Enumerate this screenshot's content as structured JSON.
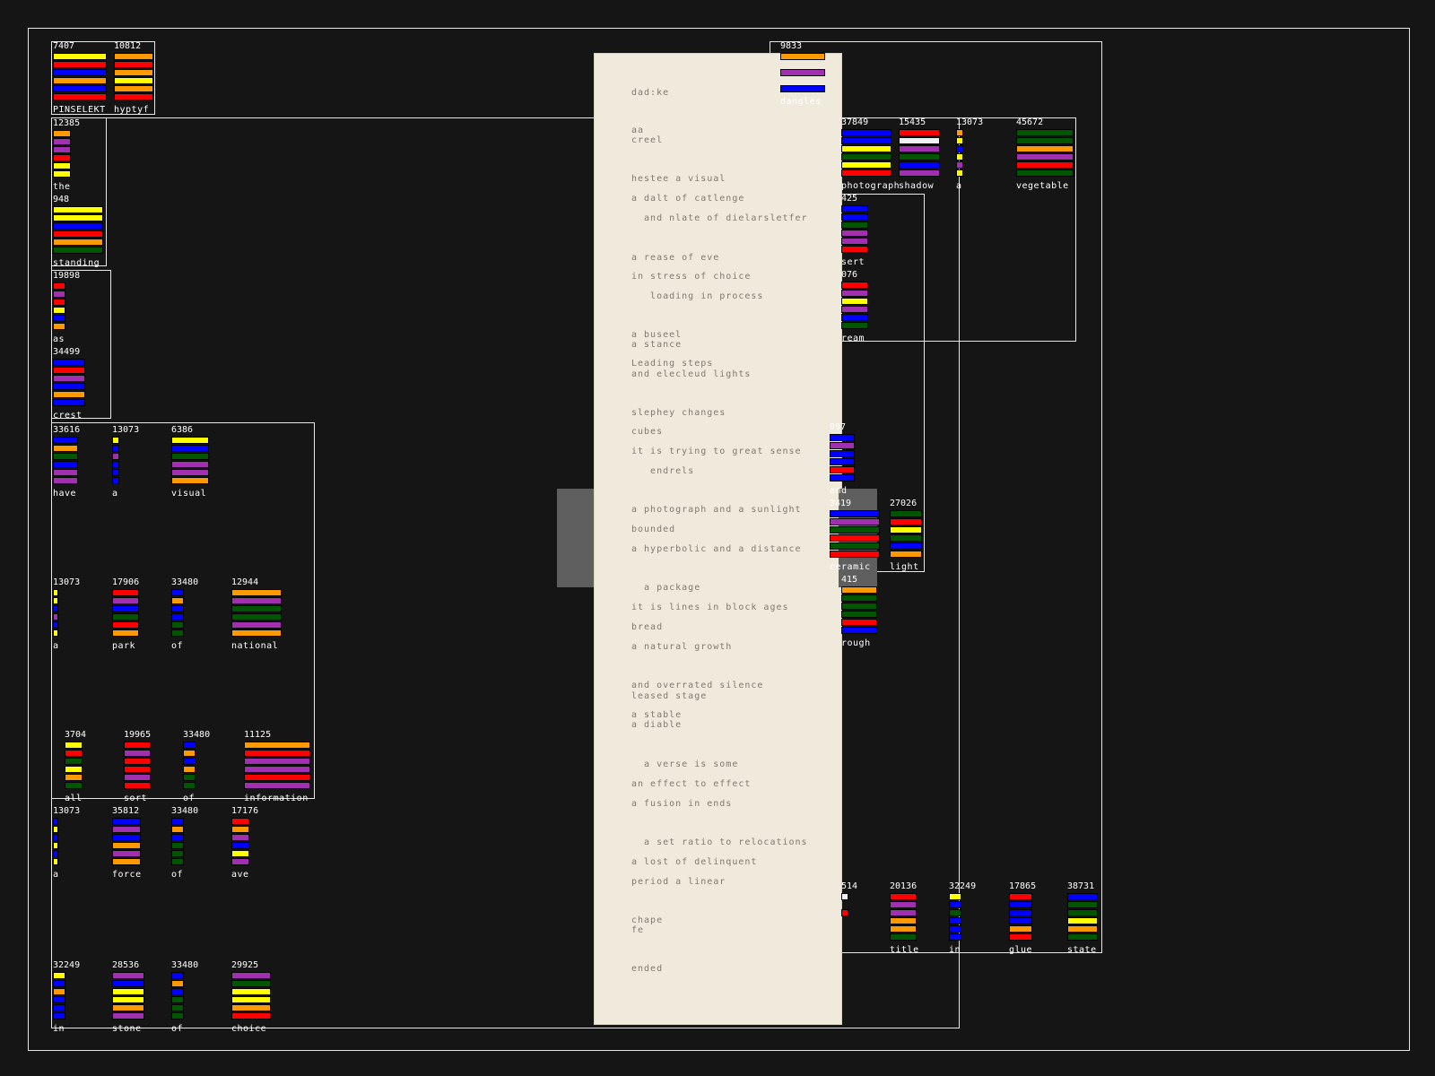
{
  "colors": {
    "background": "#151515",
    "paper": "#efeadc",
    "yellow": "#ffff00",
    "orange": "#ff9900",
    "blue": "#0000ff",
    "red": "#ff0000",
    "purple": "#a030b0",
    "green": "#005500",
    "white": "#f2f2f2"
  },
  "paper_lines": [
    "dad:ke",
    "aa",
    "creel",
    "hestee a visual",
    "a dalt of catlenge",
    "  and nlate of dielarsletfer",
    "a rease of eve",
    "in stress of choice",
    "   loading in process",
    "a buseel",
    "a stance",
    "Leading steps",
    "and elecleud lights",
    "slephey changes",
    "cubes",
    "it is trying to great sense",
    "   endrels",
    "a photograph and a sunlight",
    "bounded",
    "a hyperbolic and a distance",
    "  a package",
    "it is lines in block ages",
    "bread",
    "a natural growth",
    "and overrated silence",
    "leased stage",
    "a stable",
    "a diable",
    "  a verse is some",
    "an effect to effect",
    "a fusion in ends",
    "  a set ratio to relocations",
    "a lost of delinquent",
    "period a linear",
    "chape",
    "fe",
    "ended"
  ],
  "cells": [
    {
      "num": "7407",
      "label": "PINSELEKT"
    },
    {
      "num": "10812",
      "label": "hyptyf"
    },
    {
      "num": "9833",
      "label": "dangles"
    },
    {
      "num": "12385",
      "label": "the"
    },
    {
      "num": "948",
      "label": "standing"
    },
    {
      "num": "19898",
      "label": "as"
    },
    {
      "num": "34499",
      "label": "crest"
    },
    {
      "num": "33616",
      "label": "have"
    },
    {
      "num": "13073",
      "label": "a"
    },
    {
      "num": "6386",
      "label": "visual"
    },
    {
      "num": "13073",
      "label": "a"
    },
    {
      "num": "17906",
      "label": "park"
    },
    {
      "num": "33480",
      "label": "of"
    },
    {
      "num": "12944",
      "label": "national"
    },
    {
      "num": "3704",
      "label": "all"
    },
    {
      "num": "19965",
      "label": "sort"
    },
    {
      "num": "33480",
      "label": "of"
    },
    {
      "num": "11125",
      "label": "information"
    },
    {
      "num": "13073",
      "label": "a"
    },
    {
      "num": "35812",
      "label": "force"
    },
    {
      "num": "33480",
      "label": "of"
    },
    {
      "num": "17176",
      "label": "ave"
    },
    {
      "num": "32249",
      "label": "in"
    },
    {
      "num": "28536",
      "label": "stone"
    },
    {
      "num": "33480",
      "label": "of"
    },
    {
      "num": "29925",
      "label": "choice"
    },
    {
      "num": "37849",
      "label": "photograph"
    },
    {
      "num": "15435",
      "label": "shadow"
    },
    {
      "num": "13073",
      "label": "a"
    },
    {
      "num": "45672",
      "label": "vegetable"
    },
    {
      "num": "425",
      "label": "sert"
    },
    {
      "num": "076",
      "label": "ream"
    },
    {
      "num": "097",
      "label": "and"
    },
    {
      "num": "27026",
      "label": "light"
    },
    {
      "num": "3419",
      "label": "ceramic"
    },
    {
      "num": "415",
      "label": "rough"
    },
    {
      "num": "514",
      "label": ""
    },
    {
      "num": "20136",
      "label": "title"
    },
    {
      "num": "32249",
      "label": "in"
    },
    {
      "num": "17865",
      "label": "glue"
    },
    {
      "num": "38731",
      "label": "state"
    }
  ]
}
